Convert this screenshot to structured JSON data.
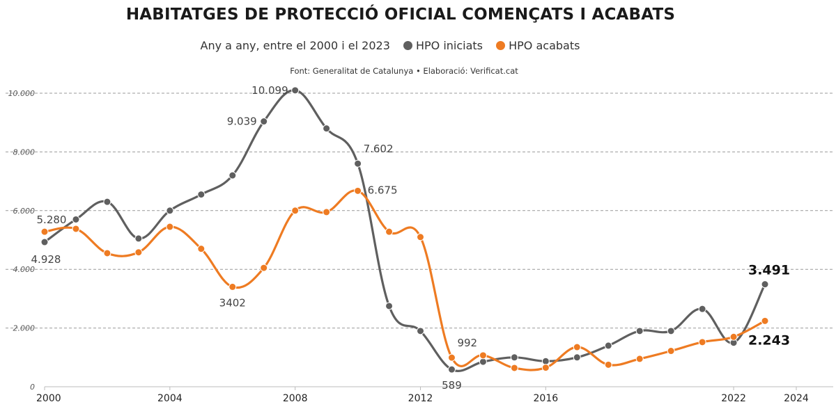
{
  "chart_data": {
    "type": "line",
    "title": "HABITATGES DE PROTECCIÓ OFICIAL COMENÇATS I ACABATS",
    "subtitle": "Any a any, entre el 2000 i el 2023",
    "source": "Font: Generalitat de Catalunya • Elaboració: Verificat.cat",
    "x_ticks": [
      "2000",
      "2004",
      "2008",
      "2012",
      "2016",
      "2022",
      "2024"
    ],
    "x_tick_values": [
      2000,
      2004,
      2008,
      2012,
      2016,
      2022,
      2024
    ],
    "xlim": [
      2000,
      2024
    ],
    "ylim": [
      0,
      10000
    ],
    "y_ticks": [
      {
        "value": 0,
        "label": "0"
      },
      {
        "value": 2000,
        "label": "2.000"
      },
      {
        "value": 4000,
        "label": "4.000"
      },
      {
        "value": 6000,
        "label": "6.000"
      },
      {
        "value": 8000,
        "label": "8.000"
      },
      {
        "value": 10000,
        "label": "10.000"
      }
    ],
    "grid": true,
    "legend_position": "top-center",
    "series": [
      {
        "name": "HPO iniciats",
        "color": "#5f5f5f",
        "x": [
          2000,
          2001,
          2002,
          2003,
          2004,
          2005,
          2006,
          2007,
          2008,
          2009,
          2010,
          2011,
          2012,
          2013,
          2014,
          2015,
          2016,
          2017,
          2018,
          2019,
          2020,
          2021,
          2022,
          2023
        ],
        "values": [
          4928,
          5700,
          6300,
          5050,
          6000,
          6550,
          7200,
          9039,
          10099,
          8800,
          7602,
          2750,
          1900,
          589,
          850,
          1000,
          870,
          1000,
          1400,
          1900,
          1900,
          2650,
          1500,
          3491
        ]
      },
      {
        "name": "HPO acabats",
        "color": "#ee7b22",
        "x": [
          2000,
          2001,
          2002,
          2003,
          2004,
          2005,
          2006,
          2007,
          2008,
          2009,
          2010,
          2011,
          2012,
          2013,
          2014,
          2015,
          2016,
          2017,
          2018,
          2019,
          2020,
          2021,
          2022,
          2023
        ],
        "values": [
          5280,
          5380,
          4550,
          4580,
          5450,
          4700,
          3402,
          4050,
          6000,
          5950,
          6675,
          5280,
          5100,
          992,
          1070,
          640,
          650,
          1350,
          750,
          950,
          1220,
          1520,
          1700,
          2243
        ]
      }
    ],
    "annotations": [
      {
        "series": 0,
        "index": 0,
        "text": "4.928",
        "placement": "below"
      },
      {
        "series": 1,
        "index": 0,
        "text": "5.280",
        "placement": "above"
      },
      {
        "series": 0,
        "index": 7,
        "text": "9.039",
        "placement": "left"
      },
      {
        "series": 0,
        "index": 8,
        "text": "10.099",
        "placement": "left"
      },
      {
        "series": 0,
        "index": 10,
        "text": "7.602",
        "placement": "above-right"
      },
      {
        "series": 1,
        "index": 10,
        "text": "6.675",
        "placement": "right"
      },
      {
        "series": 1,
        "index": 6,
        "text": "3402",
        "placement": "below"
      },
      {
        "series": 1,
        "index": 13,
        "text": "992",
        "placement": "above-right"
      },
      {
        "series": 0,
        "index": 13,
        "text": "589",
        "placement": "below"
      },
      {
        "series": 0,
        "index": 23,
        "text": "3.491",
        "placement": "above",
        "bold": true
      },
      {
        "series": 1,
        "index": 23,
        "text": "2.243",
        "placement": "below",
        "bold": true
      }
    ]
  }
}
